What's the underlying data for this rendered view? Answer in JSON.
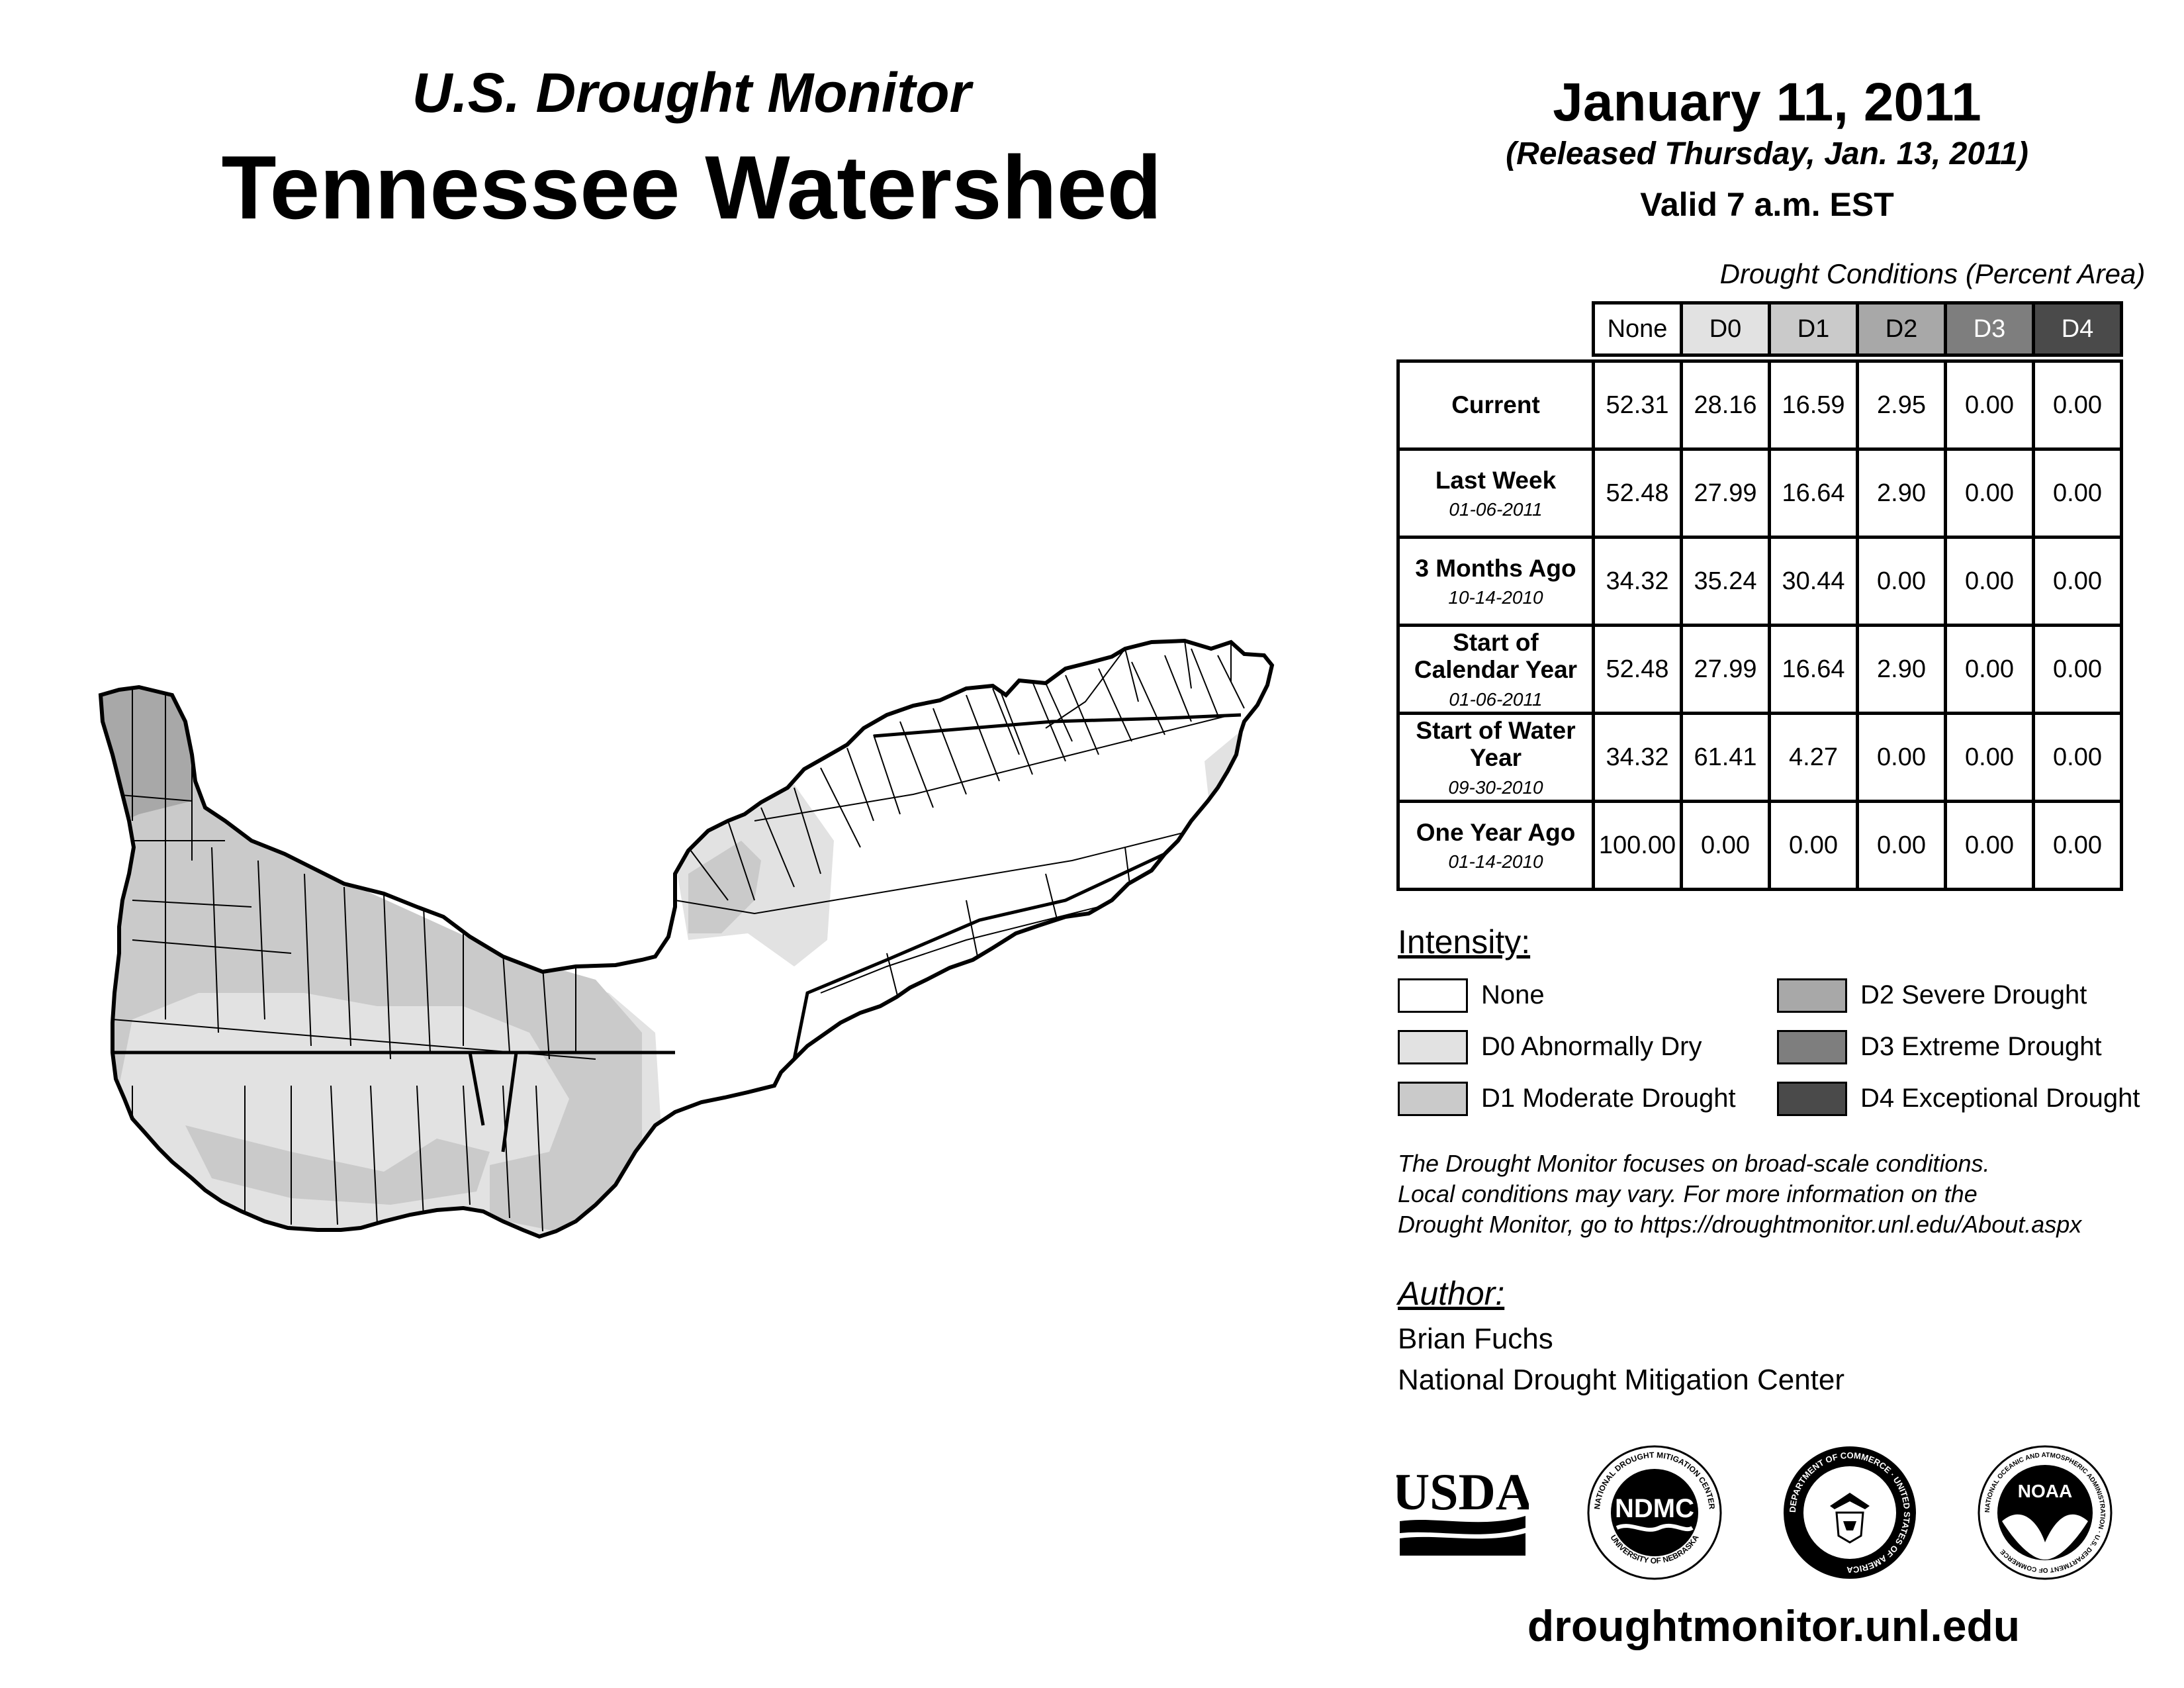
{
  "header": {
    "subtitle": "U.S. Drought Monitor",
    "title": "Tennessee Watershed",
    "date": "January 11, 2011",
    "released": "(Released Thursday, Jan. 13, 2011)",
    "valid": "Valid 7 a.m. EST"
  },
  "table": {
    "caption": "Drought Conditions (Percent Area)",
    "columns": [
      "None",
      "D0",
      "D1",
      "D2",
      "D3",
      "D4"
    ],
    "column_colors": [
      "#ffffff",
      "#e2e2e2",
      "#cacaca",
      "#a8a8a8",
      "#7e7e7e",
      "#4a4a4a"
    ],
    "column_text_colors": [
      "#000000",
      "#000000",
      "#000000",
      "#000000",
      "#ffffff",
      "#ffffff"
    ],
    "rows": [
      {
        "label": "Current",
        "date": "",
        "values": [
          "52.31",
          "28.16",
          "16.59",
          "2.95",
          "0.00",
          "0.00"
        ]
      },
      {
        "label": "Last Week",
        "date": "01-06-2011",
        "values": [
          "52.48",
          "27.99",
          "16.64",
          "2.90",
          "0.00",
          "0.00"
        ]
      },
      {
        "label": "3 Months Ago",
        "date": "10-14-2010",
        "values": [
          "34.32",
          "35.24",
          "30.44",
          "0.00",
          "0.00",
          "0.00"
        ]
      },
      {
        "label": "Start of Calendar Year",
        "date": "01-06-2011",
        "values": [
          "52.48",
          "27.99",
          "16.64",
          "2.90",
          "0.00",
          "0.00"
        ]
      },
      {
        "label": "Start of Water Year",
        "date": "09-30-2010",
        "values": [
          "34.32",
          "61.41",
          "4.27",
          "0.00",
          "0.00",
          "0.00"
        ]
      },
      {
        "label": "One Year Ago",
        "date": "01-14-2010",
        "values": [
          "100.00",
          "0.00",
          "0.00",
          "0.00",
          "0.00",
          "0.00"
        ]
      }
    ]
  },
  "legend": {
    "heading": "Intensity:",
    "items": [
      {
        "label": "None",
        "color": "#ffffff"
      },
      {
        "label": "D0 Abnormally Dry",
        "color": "#e2e2e2"
      },
      {
        "label": "D1 Moderate Drought",
        "color": "#cacaca"
      },
      {
        "label": "D2 Severe Drought",
        "color": "#a8a8a8"
      },
      {
        "label": "D3 Extreme Drought",
        "color": "#7e7e7e"
      },
      {
        "label": "D4 Exceptional Drought",
        "color": "#4a4a4a"
      }
    ]
  },
  "note": {
    "line1": "The Drought Monitor focuses on broad-scale conditions.",
    "line2": "Local conditions may vary. For more information on the",
    "line3": "Drought Monitor, go to https://droughtmonitor.unl.edu/About.aspx"
  },
  "author": {
    "heading": "Author:",
    "name": "Brian Fuchs",
    "org": "National Drought Mitigation Center"
  },
  "logos": {
    "usda": "USDA",
    "ndmc": "NDMC",
    "ndmc_ring_top": "NATIONAL DROUGHT MITIGATION CENTER",
    "ndmc_ring_bottom": "UNIVERSITY OF NEBRASKA",
    "doc_ring": "DEPARTMENT OF COMMERCE · UNITED STATES OF AMERICA",
    "noaa": "NOAA",
    "noaa_ring": "NATIONAL OCEANIC AND ATMOSPHERIC ADMINISTRATION · U.S. DEPARTMENT OF COMMERCE"
  },
  "footer": {
    "site": "droughtmonitor.unl.edu"
  },
  "map": {
    "region": "Tennessee Watershed",
    "fill_none": "#ffffff",
    "fill_d0": "#e2e2e2",
    "fill_d1": "#cacaca",
    "fill_d2": "#a8a8a8",
    "outline": "#000000"
  }
}
